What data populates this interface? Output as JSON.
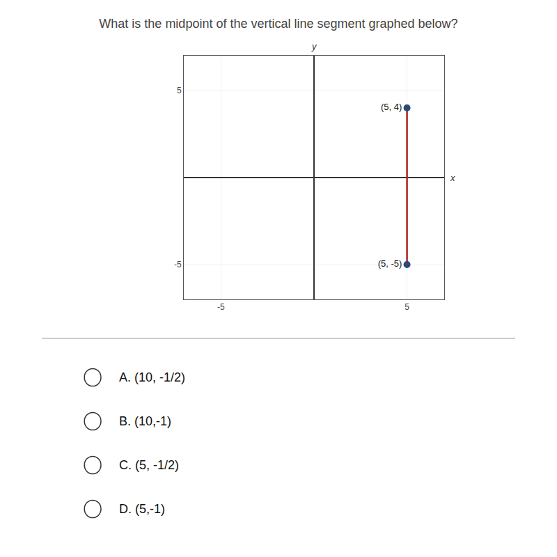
{
  "chart_data": {
    "type": "line",
    "title": "What is the midpoint of the vertical line segment graphed below?",
    "xlabel": "x",
    "ylabel": "y",
    "x": [
      5,
      5
    ],
    "series": [
      {
        "type": "line",
        "color": "#aa2222",
        "values": [
          4,
          -5
        ]
      },
      {
        "type": "scatter",
        "color": "#2b4a7a",
        "marker": "circle",
        "values": [
          4,
          -5
        ],
        "value_labels": [
          "(5, 4)",
          "(5, -5)"
        ]
      }
    ],
    "data_labels": true,
    "xlim": [
      -7,
      7
    ],
    "ylim": [
      -7,
      7
    ],
    "xticks": [
      -5,
      5
    ],
    "yticks": [
      -5,
      5
    ],
    "grid": true,
    "annotations": [
      "A. (10, -1/2)",
      "B. (10,-1)",
      "C. (5, -1/2)",
      "D. (5,-1)"
    ]
  }
}
